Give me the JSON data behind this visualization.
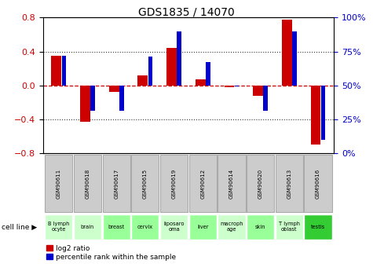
{
  "title": "GDS1835 / 14070",
  "gsm_labels": [
    "GSM90611",
    "GSM90618",
    "GSM90617",
    "GSM90615",
    "GSM90619",
    "GSM90612",
    "GSM90614",
    "GSM90620",
    "GSM90613",
    "GSM90616"
  ],
  "cell_labels": [
    "B lymph\nocyte",
    "brain",
    "breast",
    "cervix",
    "liposaro\noma",
    "liver",
    "macroph\nage",
    "skin",
    "T lymph\noblast",
    "testis"
  ],
  "cell_colors": [
    "#ccffcc",
    "#ccffcc",
    "#99ff99",
    "#99ff99",
    "#ccffcc",
    "#99ff99",
    "#ccffcc",
    "#99ff99",
    "#ccffcc",
    "#33cc33"
  ],
  "log2_ratio": [
    0.35,
    -0.43,
    -0.08,
    0.12,
    0.44,
    0.07,
    -0.02,
    -0.12,
    0.78,
    -0.7
  ],
  "pct_rank_raw": [
    72,
    31,
    31,
    71,
    90,
    67,
    49,
    31,
    90,
    10
  ],
  "ylim_left": [
    -0.8,
    0.8
  ],
  "ylim_right": [
    0,
    100
  ],
  "yticks_left": [
    -0.8,
    -0.4,
    0.0,
    0.4,
    0.8
  ],
  "yticks_right": [
    0,
    25,
    50,
    75,
    100
  ],
  "bar_color_red": "#cc0000",
  "bar_color_blue": "#0000cc",
  "bg_color": "#ffffff",
  "dotted_line_color": "#333333",
  "zero_line_color": "#cc0000",
  "gsm_box_color": "#cccccc",
  "gsm_box_edge": "#aaaaaa"
}
